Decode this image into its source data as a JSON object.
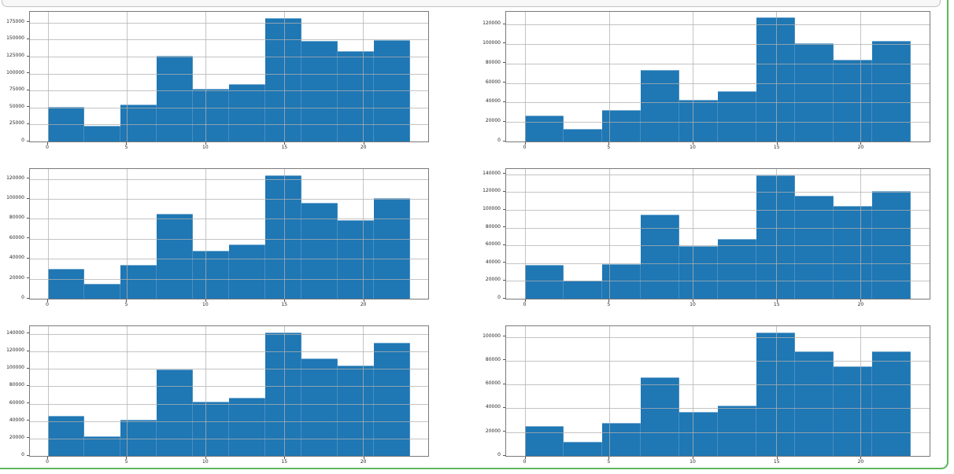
{
  "style": {
    "bar_color": "#1f77b4",
    "grid_color": "#b0b0b0",
    "spine_color": "#7a7a7a",
    "frame_green": "#5cb85c",
    "cell_strip_bg": "#f7f7f7",
    "cell_strip_border": "#c2c2c2"
  },
  "figure": {
    "rows": 3,
    "cols": 2
  },
  "chart_data": [
    {
      "type": "bar",
      "subtype": "histogram",
      "position": "row1-left",
      "title": "",
      "xlabel": "",
      "ylabel": "",
      "grid": true,
      "legend": false,
      "bar_color": "#1f77b4",
      "bins": {
        "start": 0,
        "width": 2.3,
        "count": 10
      },
      "x_bin_edges": [
        0,
        2.3,
        4.6,
        6.9,
        9.2,
        11.5,
        13.8,
        16.1,
        18.4,
        20.7,
        23
      ],
      "values": [
        51000,
        23000,
        54000,
        126000,
        77000,
        84000,
        182000,
        148000,
        133000,
        149000
      ],
      "xticks": [
        0,
        5,
        10,
        15,
        20
      ],
      "yticks": [
        0,
        25000,
        50000,
        75000,
        100000,
        125000,
        150000,
        175000
      ],
      "xlim": [
        -1.15,
        24.15
      ],
      "ylim": [
        0,
        191000
      ]
    },
    {
      "type": "bar",
      "subtype": "histogram",
      "position": "row1-right",
      "title": "",
      "xlabel": "",
      "ylabel": "",
      "grid": true,
      "legend": false,
      "bar_color": "#1f77b4",
      "bins": {
        "start": 0,
        "width": 2.3,
        "count": 10
      },
      "x_bin_edges": [
        0,
        2.3,
        4.6,
        6.9,
        9.2,
        11.5,
        13.8,
        16.1,
        18.4,
        20.7,
        23
      ],
      "values": [
        27000,
        13000,
        32000,
        73000,
        43000,
        52000,
        127000,
        101000,
        84000,
        103000
      ],
      "xticks": [
        0,
        5,
        10,
        15,
        20
      ],
      "yticks": [
        0,
        20000,
        40000,
        60000,
        80000,
        100000,
        120000
      ],
      "xlim": [
        -1.15,
        24.15
      ],
      "ylim": [
        0,
        133000
      ]
    },
    {
      "type": "bar",
      "subtype": "histogram",
      "position": "row2-left",
      "title": "",
      "xlabel": "",
      "ylabel": "",
      "grid": true,
      "legend": false,
      "bar_color": "#1f77b4",
      "bins": {
        "start": 0,
        "width": 2.3,
        "count": 10
      },
      "x_bin_edges": [
        0,
        2.3,
        4.6,
        6.9,
        9.2,
        11.5,
        13.8,
        16.1,
        18.4,
        20.7,
        23
      ],
      "values": [
        30000,
        15000,
        34000,
        85000,
        48000,
        54000,
        124000,
        96000,
        79000,
        101000
      ],
      "xticks": [
        0,
        5,
        10,
        15,
        20
      ],
      "yticks": [
        0,
        20000,
        40000,
        60000,
        80000,
        100000,
        120000
      ],
      "xlim": [
        -1.15,
        24.15
      ],
      "ylim": [
        0,
        130000
      ]
    },
    {
      "type": "bar",
      "subtype": "histogram",
      "position": "row2-right",
      "title": "",
      "xlabel": "",
      "ylabel": "",
      "grid": true,
      "legend": false,
      "bar_color": "#1f77b4",
      "bins": {
        "start": 0,
        "width": 2.3,
        "count": 10
      },
      "x_bin_edges": [
        0,
        2.3,
        4.6,
        6.9,
        9.2,
        11.5,
        13.8,
        16.1,
        18.4,
        20.7,
        23
      ],
      "values": [
        38000,
        20000,
        39000,
        95000,
        59000,
        67000,
        139000,
        116000,
        104000,
        121000
      ],
      "xticks": [
        0,
        5,
        10,
        15,
        20
      ],
      "yticks": [
        0,
        20000,
        40000,
        60000,
        80000,
        100000,
        120000,
        140000
      ],
      "xlim": [
        -1.15,
        24.15
      ],
      "ylim": [
        0,
        146000
      ]
    },
    {
      "type": "bar",
      "subtype": "histogram",
      "position": "row3-left",
      "title": "",
      "xlabel": "",
      "ylabel": "",
      "grid": true,
      "legend": false,
      "bar_color": "#1f77b4",
      "bins": {
        "start": 0,
        "width": 2.3,
        "count": 10
      },
      "x_bin_edges": [
        0,
        2.3,
        4.6,
        6.9,
        9.2,
        11.5,
        13.8,
        16.1,
        18.4,
        20.7,
        23
      ],
      "values": [
        46000,
        23000,
        42000,
        99000,
        62000,
        67000,
        142000,
        112000,
        104000,
        130000
      ],
      "xticks": [
        0,
        5,
        10,
        15,
        20
      ],
      "yticks": [
        0,
        20000,
        40000,
        60000,
        80000,
        100000,
        120000,
        140000
      ],
      "xlim": [
        -1.15,
        24.15
      ],
      "ylim": [
        0,
        149000
      ]
    },
    {
      "type": "bar",
      "subtype": "histogram",
      "position": "row3-right",
      "title": "",
      "xlabel": "",
      "ylabel": "",
      "grid": true,
      "legend": false,
      "bar_color": "#1f77b4",
      "bins": {
        "start": 0,
        "width": 2.3,
        "count": 10
      },
      "x_bin_edges": [
        0,
        2.3,
        4.6,
        6.9,
        9.2,
        11.5,
        13.8,
        16.1,
        18.4,
        20.7,
        23
      ],
      "values": [
        25000,
        12000,
        28000,
        66000,
        37000,
        42000,
        104000,
        88000,
        75000,
        88000
      ],
      "xticks": [
        0,
        5,
        10,
        15,
        20
      ],
      "yticks": [
        0,
        20000,
        40000,
        60000,
        80000,
        100000
      ],
      "xlim": [
        -1.15,
        24.15
      ],
      "ylim": [
        0,
        109000
      ]
    }
  ]
}
